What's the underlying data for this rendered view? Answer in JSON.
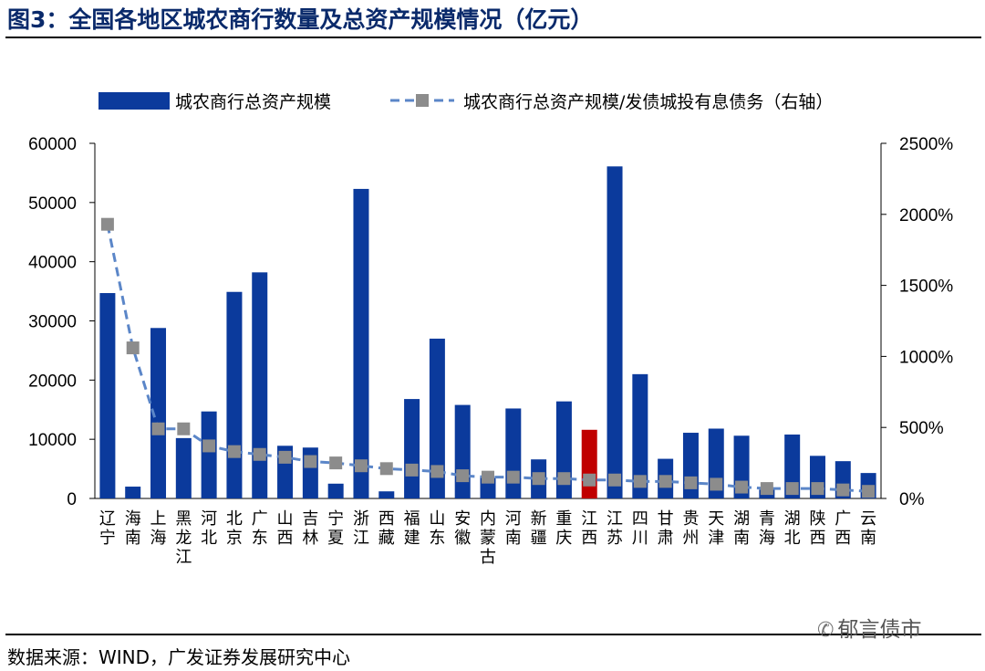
{
  "figure": {
    "title": "图3：全国各地区城农商行数量及总资产规模情况（亿元）",
    "source": "数据来源：WIND，广发证券发展研究中心",
    "watermark": "郁言债市",
    "watermark_icon": "wechat-icon"
  },
  "chart_data": {
    "type": "bar",
    "categories": [
      "辽宁",
      "海南",
      "上海",
      "黑龙江",
      "河北",
      "北京",
      "广东",
      "山西",
      "吉林",
      "宁夏",
      "浙江",
      "西藏",
      "福建",
      "山东",
      "安徽",
      "内蒙古",
      "河南",
      "新疆",
      "重庆",
      "江西",
      "江苏",
      "四川",
      "甘肃",
      "贵州",
      "天津",
      "湖南",
      "青海",
      "湖北",
      "陕西",
      "广西",
      "云南"
    ],
    "series": [
      {
        "name": "城农商行总资产规模",
        "kind": "bar",
        "axis": "left",
        "color": "#0b3a9c",
        "values": [
          34700,
          2000,
          28800,
          10200,
          14700,
          34900,
          38200,
          8900,
          8600,
          2500,
          52300,
          1200,
          16800,
          27000,
          15800,
          3500,
          15200,
          6600,
          16400,
          11600,
          56100,
          21000,
          6700,
          11100,
          11800,
          10600,
          1500,
          10800,
          7200,
          6300,
          4300
        ]
      },
      {
        "name": "城农商行总资产规模/发债城投有息债务（右轴）",
        "kind": "line",
        "axis": "right",
        "color": "#5b86c8",
        "marker_color": "#8c8c8c",
        "values": [
          1930,
          1060,
          490,
          490,
          370,
          330,
          310,
          290,
          260,
          250,
          230,
          210,
          200,
          190,
          160,
          150,
          150,
          140,
          140,
          130,
          130,
          120,
          120,
          110,
          100,
          80,
          70,
          70,
          70,
          60,
          50
        ]
      }
    ],
    "highlight": {
      "category": "江西",
      "color": "#c00000"
    },
    "left_axis": {
      "min": 0,
      "max": 60000,
      "ticks": [
        "0",
        "10000",
        "20000",
        "30000",
        "40000",
        "50000",
        "60000"
      ]
    },
    "right_axis": {
      "min": 0,
      "max": 2500,
      "ticks": [
        "0%",
        "500%",
        "1000%",
        "1500%",
        "2000%",
        "2500%"
      ]
    },
    "legend_position": "top"
  }
}
